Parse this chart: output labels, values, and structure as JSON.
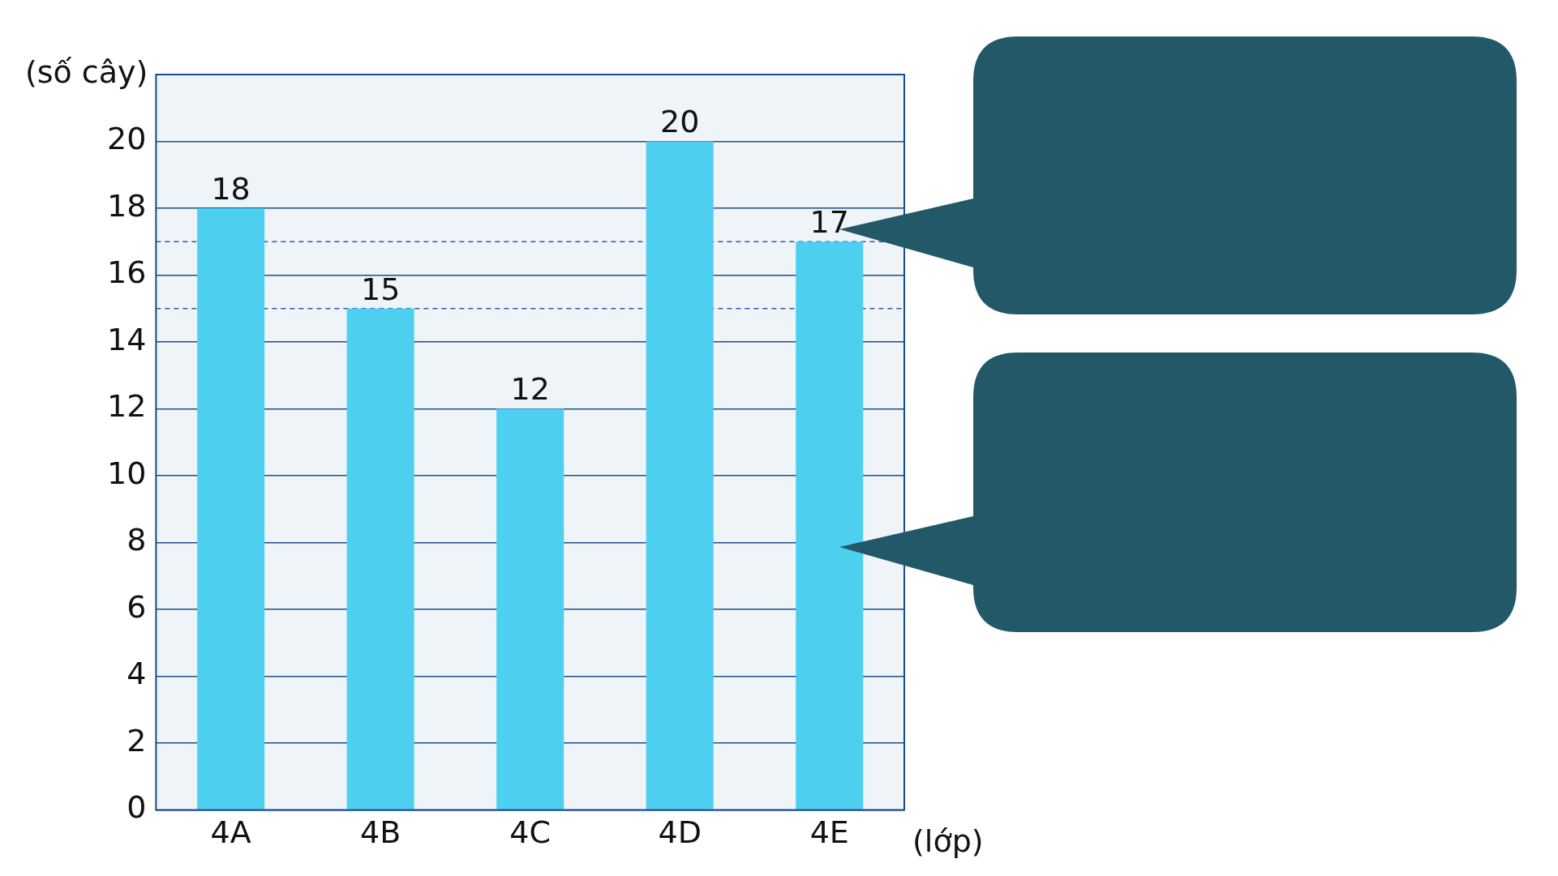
{
  "chart_data": {
    "type": "bar",
    "xlabel": "(lớp)",
    "ylabel": "(số cây)",
    "categories": [
      "4A",
      "4B",
      "4C",
      "4D",
      "4E"
    ],
    "values": [
      18,
      15,
      12,
      20,
      17
    ],
    "color": "#4dd0f0",
    "ylim": [
      0,
      22
    ],
    "yticks": [
      0,
      2,
      4,
      6,
      8,
      10,
      12,
      14,
      16,
      18,
      20
    ],
    "grid": "y",
    "data_labels": true,
    "ref_lines": [
      {
        "axis": "y",
        "value": 17,
        "color": "#2a5caa",
        "line_style": "dashed"
      },
      {
        "axis": "y",
        "value": 15,
        "color": "#2a5caa",
        "line_style": "dashed"
      }
    ]
  }
}
